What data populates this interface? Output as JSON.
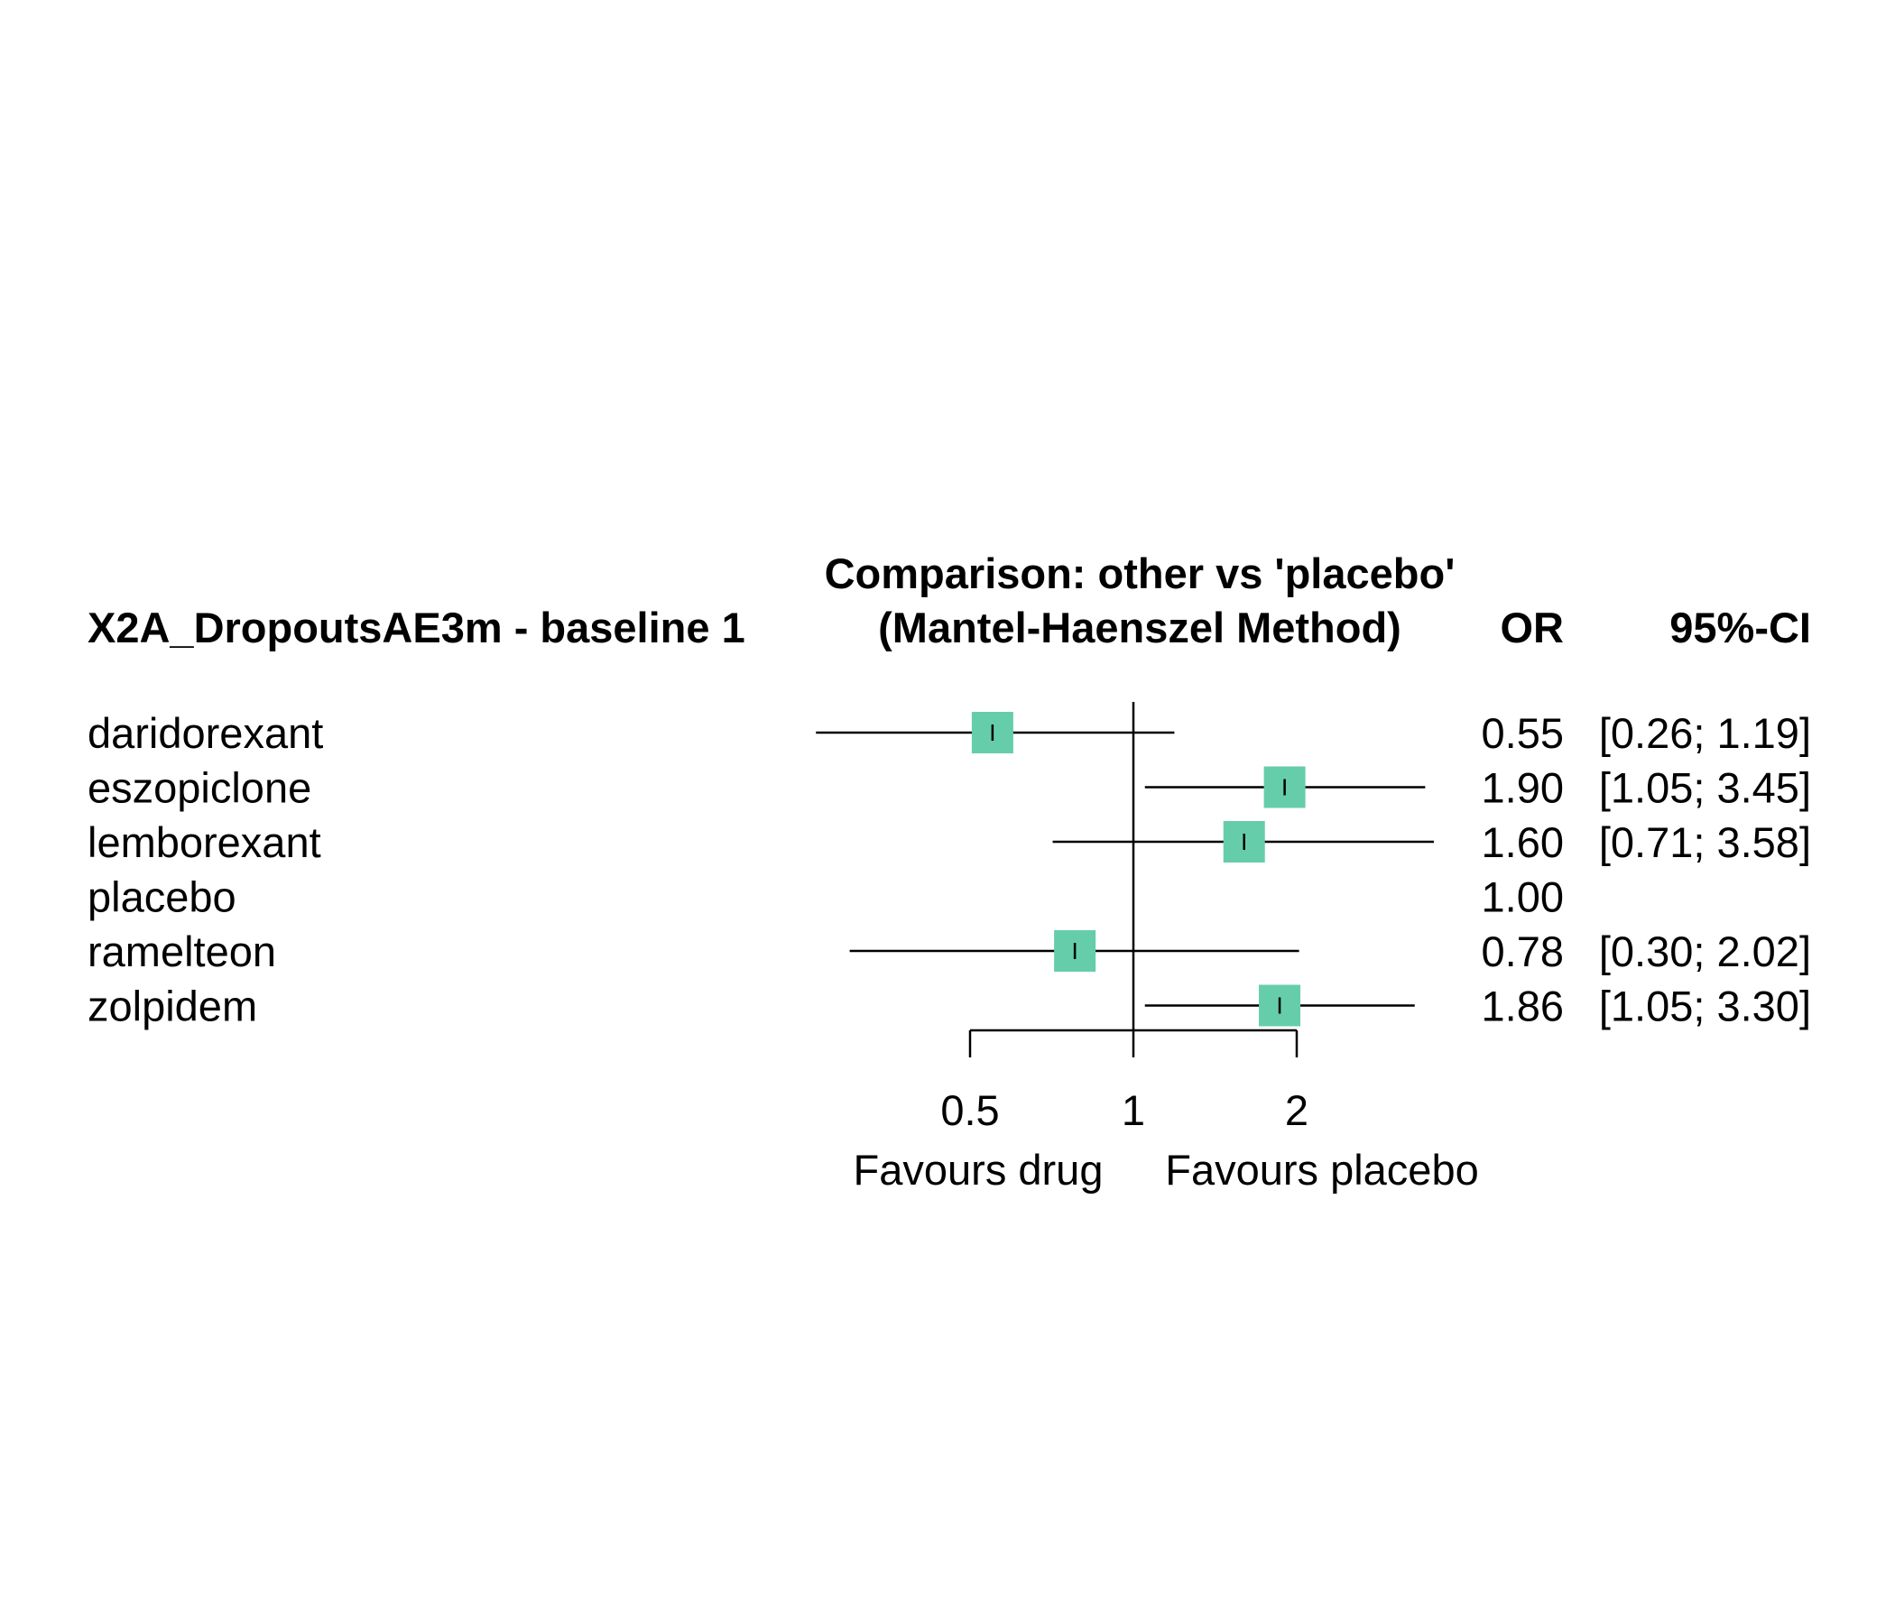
{
  "chart_data": {
    "type": "forest",
    "header": {
      "study_label": "X2A_DropoutsAE3m - baseline 1",
      "comparison_line1": "Comparison: other vs 'placebo'",
      "comparison_line2": "(Mantel-Haenszel Method)",
      "effect_column": "OR",
      "ci_column": "95%-CI"
    },
    "rows": [
      {
        "treatment": "daridorexant",
        "or": 0.55,
        "lower": 0.26,
        "upper": 1.19,
        "or_text": "0.55",
        "ci_text": "[0.26; 1.19]"
      },
      {
        "treatment": "eszopiclone",
        "or": 1.9,
        "lower": 1.05,
        "upper": 3.45,
        "or_text": "1.90",
        "ci_text": "[1.05; 3.45]"
      },
      {
        "treatment": "lemborexant",
        "or": 1.6,
        "lower": 0.71,
        "upper": 3.58,
        "or_text": "1.60",
        "ci_text": "[0.71; 3.58]"
      },
      {
        "treatment": "placebo",
        "or": 1.0,
        "lower": null,
        "upper": null,
        "or_text": "1.00",
        "ci_text": ""
      },
      {
        "treatment": "ramelteon",
        "or": 0.78,
        "lower": 0.3,
        "upper": 2.02,
        "or_text": "0.78",
        "ci_text": "[0.30; 2.02]"
      },
      {
        "treatment": "zolpidem",
        "or": 1.86,
        "lower": 1.05,
        "upper": 3.3,
        "or_text": "1.86",
        "ci_text": "[1.05; 3.30]"
      }
    ],
    "x_axis": {
      "scale": "log",
      "ticks": [
        0.5,
        1,
        2
      ],
      "tick_labels": [
        "0.5",
        "1",
        "2"
      ],
      "reference_line": 1
    },
    "favours_left": "Favours drug",
    "favours_right": "Favours placebo",
    "colors": {
      "box": "#66cdaa",
      "line": "#000000"
    }
  }
}
